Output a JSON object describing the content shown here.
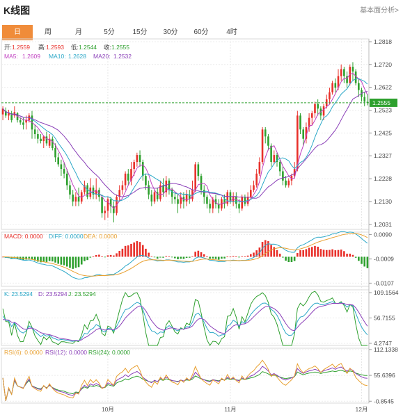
{
  "header": {
    "title": "K线图",
    "link": "基本面分析>"
  },
  "tabs": [
    {
      "label": "日",
      "active": true
    },
    {
      "label": "周",
      "active": false
    },
    {
      "label": "月",
      "active": false
    },
    {
      "label": "5分",
      "active": false
    },
    {
      "label": "15分",
      "active": false
    },
    {
      "label": "30分",
      "active": false
    },
    {
      "label": "60分",
      "active": false
    },
    {
      "label": "4时",
      "active": false
    }
  ],
  "info": {
    "open_label": "开:",
    "open": "1.2559",
    "high_label": "高:",
    "high": "1.2593",
    "low_label": "低:",
    "low": "1.2544",
    "close_label": "收:",
    "close": "1.2555",
    "ma5_label": "MA5:",
    "ma5": "1.2609",
    "ma10_label": "MA10:",
    "ma10": "1.2628",
    "ma20_label": "MA20:",
    "ma20": "1.2532"
  },
  "macd_info": {
    "macd": "MACD: 0.0000",
    "diff": "DIFF: 0.0000",
    "dea": "DEA: 0.0000"
  },
  "kdj_info": {
    "k": "K: 23.5294",
    "d": "D: 23.5294",
    "j": "J: 23.5294"
  },
  "rsi_info": {
    "rsi6": "RSI(6): 0.0000",
    "rsi12": "RSI(12): 0.0000",
    "rsi24": "RSI(24): 0.0000"
  },
  "colors": {
    "up": "#e8302a",
    "down": "#2ea02e",
    "ma5": "#c040c0",
    "ma10": "#2aa7c7",
    "ma20": "#8a3fb8",
    "accent": "#f08c3a"
  },
  "chart_data": {
    "type": "candlestick",
    "x_labels": [
      {
        "index": 36,
        "label": "10月"
      },
      {
        "index": 78,
        "label": "11月"
      },
      {
        "index": 123,
        "label": "12月"
      }
    ],
    "last_price": 1.2555,
    "price_axis": {
      "ticks": [
        1.2818,
        1.272,
        1.2622,
        1.2523,
        1.2425,
        1.2327,
        1.2228,
        1.213,
        1.2031
      ],
      "range": [
        1.201,
        1.283
      ]
    },
    "candles": [
      [
        1.2505,
        1.253,
        1.254,
        1.248
      ],
      [
        1.252,
        1.25,
        1.2535,
        1.249
      ],
      [
        1.25,
        1.251,
        1.2525,
        1.248
      ],
      [
        1.251,
        1.248,
        1.252,
        1.247
      ],
      [
        1.25,
        1.2515,
        1.254,
        1.249
      ],
      [
        1.251,
        1.248,
        1.2515,
        1.247
      ],
      [
        1.248,
        1.247,
        1.249,
        1.246
      ],
      [
        1.247,
        1.246,
        1.249,
        1.244
      ],
      [
        1.247,
        1.248,
        1.25,
        1.244
      ],
      [
        1.248,
        1.25,
        1.251,
        1.247
      ],
      [
        1.25,
        1.244,
        1.252,
        1.24
      ],
      [
        1.244,
        1.242,
        1.246,
        1.24
      ],
      [
        1.242,
        1.24,
        1.244,
        1.238
      ],
      [
        1.24,
        1.239,
        1.242,
        1.238
      ],
      [
        1.239,
        1.241,
        1.2415,
        1.236
      ],
      [
        1.241,
        1.238,
        1.243,
        1.237
      ],
      [
        1.237,
        1.24,
        1.242,
        1.236
      ],
      [
        1.24,
        1.236,
        1.241,
        1.235
      ],
      [
        1.236,
        1.232,
        1.238,
        1.23
      ],
      [
        1.232,
        1.229,
        1.234,
        1.228
      ],
      [
        1.229,
        1.227,
        1.231,
        1.224
      ],
      [
        1.227,
        1.225,
        1.23,
        1.223
      ],
      [
        1.225,
        1.22,
        1.227,
        1.218
      ],
      [
        1.22,
        1.216,
        1.222,
        1.214
      ],
      [
        1.216,
        1.213,
        1.218,
        1.211
      ],
      [
        1.213,
        1.215,
        1.217,
        1.211
      ],
      [
        1.215,
        1.213,
        1.219,
        1.211
      ],
      [
        1.213,
        1.217,
        1.218,
        1.212
      ],
      [
        1.217,
        1.22,
        1.222,
        1.216
      ],
      [
        1.22,
        1.215,
        1.221,
        1.214
      ],
      [
        1.215,
        1.219,
        1.223,
        1.214
      ],
      [
        1.219,
        1.216,
        1.22,
        1.214
      ],
      [
        1.216,
        1.218,
        1.223,
        1.214
      ],
      [
        1.218,
        1.215,
        1.219,
        1.213
      ],
      [
        1.215,
        1.208,
        1.216,
        1.206
      ],
      [
        1.208,
        1.209,
        1.211,
        1.205
      ],
      [
        1.209,
        1.214,
        1.215,
        1.206
      ],
      [
        1.214,
        1.211,
        1.215,
        1.208
      ],
      [
        1.211,
        1.208,
        1.213,
        1.204
      ],
      [
        1.208,
        1.215,
        1.216,
        1.207
      ],
      [
        1.215,
        1.218,
        1.22,
        1.213
      ],
      [
        1.218,
        1.22,
        1.222,
        1.216
      ],
      [
        1.22,
        1.225,
        1.226,
        1.218
      ],
      [
        1.225,
        1.222,
        1.227,
        1.22
      ],
      [
        1.222,
        1.227,
        1.23,
        1.22
      ],
      [
        1.227,
        1.23,
        1.231,
        1.224
      ],
      [
        1.23,
        1.233,
        1.234,
        1.228
      ],
      [
        1.233,
        1.23,
        1.235,
        1.228
      ],
      [
        1.23,
        1.224,
        1.231,
        1.222
      ],
      [
        1.224,
        1.22,
        1.225,
        1.218
      ],
      [
        1.22,
        1.216,
        1.222,
        1.214
      ],
      [
        1.216,
        1.213,
        1.218,
        1.211
      ],
      [
        1.213,
        1.217,
        1.218,
        1.212
      ],
      [
        1.217,
        1.214,
        1.219,
        1.213
      ],
      [
        1.214,
        1.22,
        1.222,
        1.213
      ],
      [
        1.22,
        1.217,
        1.223,
        1.215
      ],
      [
        1.217,
        1.222,
        1.224,
        1.215
      ],
      [
        1.222,
        1.218,
        1.223,
        1.216
      ],
      [
        1.218,
        1.215,
        1.219,
        1.212
      ],
      [
        1.215,
        1.214,
        1.217,
        1.212
      ],
      [
        1.214,
        1.212,
        1.216,
        1.208
      ],
      [
        1.212,
        1.215,
        1.217,
        1.21
      ],
      [
        1.215,
        1.213,
        1.217,
        1.21
      ],
      [
        1.213,
        1.216,
        1.218,
        1.211
      ],
      [
        1.216,
        1.214,
        1.218,
        1.212
      ],
      [
        1.214,
        1.218,
        1.222,
        1.213
      ],
      [
        1.218,
        1.229,
        1.23,
        1.217
      ],
      [
        1.229,
        1.224,
        1.23,
        1.222
      ],
      [
        1.224,
        1.218,
        1.225,
        1.216
      ],
      [
        1.218,
        1.215,
        1.22,
        1.212
      ],
      [
        1.215,
        1.212,
        1.216,
        1.21
      ],
      [
        1.212,
        1.21,
        1.214,
        1.208
      ],
      [
        1.21,
        1.214,
        1.215,
        1.208
      ],
      [
        1.214,
        1.212,
        1.216,
        1.21
      ],
      [
        1.212,
        1.21,
        1.214,
        1.208
      ],
      [
        1.21,
        1.214,
        1.215,
        1.209
      ],
      [
        1.214,
        1.212,
        1.216,
        1.21
      ],
      [
        1.212,
        1.217,
        1.218,
        1.211
      ],
      [
        1.217,
        1.213,
        1.218,
        1.212
      ],
      [
        1.213,
        1.215,
        1.217,
        1.211
      ],
      [
        1.215,
        1.212,
        1.217,
        1.21
      ],
      [
        1.212,
        1.21,
        1.214,
        1.208
      ],
      [
        1.21,
        1.215,
        1.216,
        1.209
      ],
      [
        1.215,
        1.212,
        1.216,
        1.211
      ],
      [
        1.212,
        1.215,
        1.217,
        1.211
      ],
      [
        1.215,
        1.218,
        1.22,
        1.214
      ],
      [
        1.218,
        1.22,
        1.222,
        1.217
      ],
      [
        1.22,
        1.225,
        1.227,
        1.219
      ],
      [
        1.225,
        1.23,
        1.232,
        1.224
      ],
      [
        1.23,
        1.244,
        1.245,
        1.229
      ],
      [
        1.244,
        1.241,
        1.245,
        1.238
      ],
      [
        1.241,
        1.237,
        1.242,
        1.235
      ],
      [
        1.237,
        1.23,
        1.238,
        1.228
      ],
      [
        1.23,
        1.233,
        1.235,
        1.229
      ],
      [
        1.233,
        1.23,
        1.234,
        1.228
      ],
      [
        1.23,
        1.226,
        1.231,
        1.224
      ],
      [
        1.226,
        1.222,
        1.228,
        1.22
      ],
      [
        1.222,
        1.22,
        1.224,
        1.219
      ],
      [
        1.22,
        1.222,
        1.223,
        1.219
      ],
      [
        1.222,
        1.224,
        1.225,
        1.22
      ],
      [
        1.224,
        1.227,
        1.23,
        1.223
      ],
      [
        1.227,
        1.25,
        1.252,
        1.226
      ],
      [
        1.25,
        1.244,
        1.251,
        1.242
      ],
      [
        1.244,
        1.24,
        1.245,
        1.237
      ],
      [
        1.24,
        1.245,
        1.247,
        1.238
      ],
      [
        1.245,
        1.249,
        1.251,
        1.243
      ],
      [
        1.249,
        1.251,
        1.252,
        1.246
      ],
      [
        1.251,
        1.255,
        1.256,
        1.249
      ],
      [
        1.255,
        1.253,
        1.257,
        1.25
      ],
      [
        1.253,
        1.25,
        1.254,
        1.248
      ],
      [
        1.25,
        1.254,
        1.255,
        1.248
      ],
      [
        1.254,
        1.257,
        1.259,
        1.253
      ],
      [
        1.257,
        1.26,
        1.262,
        1.255
      ],
      [
        1.26,
        1.264,
        1.265,
        1.259
      ],
      [
        1.264,
        1.262,
        1.266,
        1.26
      ],
      [
        1.262,
        1.267,
        1.27,
        1.261
      ],
      [
        1.267,
        1.27,
        1.272,
        1.265
      ],
      [
        1.27,
        1.267,
        1.271,
        1.264
      ],
      [
        1.267,
        1.264,
        1.269,
        1.262
      ],
      [
        1.264,
        1.271,
        1.272,
        1.263
      ],
      [
        1.271,
        1.269,
        1.273,
        1.265
      ],
      [
        1.269,
        1.264,
        1.27,
        1.263
      ],
      [
        1.264,
        1.261,
        1.266,
        1.258
      ],
      [
        1.261,
        1.258,
        1.262,
        1.256
      ],
      [
        1.258,
        1.256,
        1.26,
        1.254
      ],
      [
        1.2559,
        1.2555,
        1.2593,
        1.2544
      ]
    ],
    "macd_axis": {
      "ticks": [
        0.009,
        -0.0009,
        -0.0107
      ],
      "range": [
        -0.012,
        0.01
      ]
    },
    "kdj_axis": {
      "ticks": [
        109.1564,
        56.7155,
        4.2747
      ],
      "range": [
        0,
        115
      ]
    },
    "rsi_axis": {
      "ticks": [
        112.1338,
        55.6396,
        -0.8545
      ],
      "range": [
        -5,
        115
      ]
    }
  }
}
